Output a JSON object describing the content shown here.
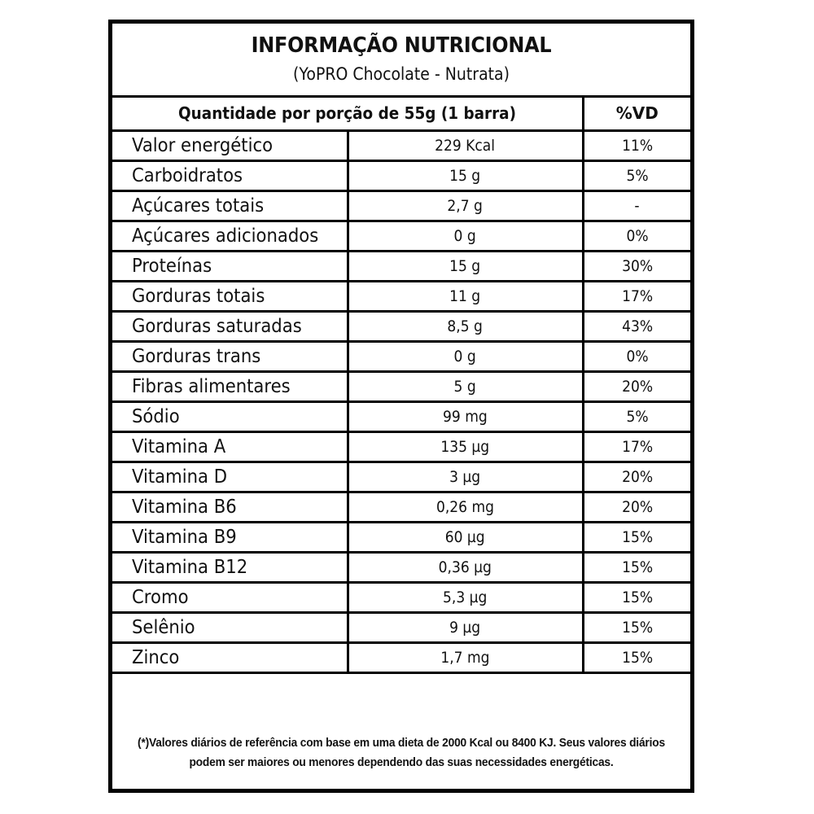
{
  "header": {
    "title": "INFORMAÇÃO NUTRICIONAL",
    "subtitle": "(YoPRO Chocolate - Nutrata)"
  },
  "columns": {
    "serving": "Quantidade por porção de 55g (1 barra)",
    "daily_value": "%VD"
  },
  "rows": [
    {
      "name": "Valor energético",
      "amount": "229 Kcal",
      "dv": "11%"
    },
    {
      "name": "Carboidratos",
      "amount": "15 g",
      "dv": "5%"
    },
    {
      "name": "Açúcares totais",
      "amount": "2,7 g",
      "dv": "-"
    },
    {
      "name": "Açúcares adicionados",
      "amount": "0 g",
      "dv": "0%"
    },
    {
      "name": "Proteínas",
      "amount": "15 g",
      "dv": "30%"
    },
    {
      "name": "Gorduras totais",
      "amount": "11 g",
      "dv": "17%"
    },
    {
      "name": "Gorduras saturadas",
      "amount": "8,5 g",
      "dv": "43%"
    },
    {
      "name": "Gorduras trans",
      "amount": "0 g",
      "dv": "0%"
    },
    {
      "name": "Fibras alimentares",
      "amount": "5 g",
      "dv": "20%"
    },
    {
      "name": "Sódio",
      "amount": "99 mg",
      "dv": "5%"
    },
    {
      "name": "Vitamina A",
      "amount": "135 µg",
      "dv": "17%"
    },
    {
      "name": "Vitamina D",
      "amount": "3 µg",
      "dv": "20%"
    },
    {
      "name": "Vitamina B6",
      "amount": "0,26 mg",
      "dv": "20%"
    },
    {
      "name": "Vitamina B9",
      "amount": "60 µg",
      "dv": "15%"
    },
    {
      "name": "Vitamina B12",
      "amount": "0,36 µg",
      "dv": "15%"
    },
    {
      "name": "Cromo",
      "amount": "5,3 µg",
      "dv": "15%"
    },
    {
      "name": "Selênio",
      "amount": "9 µg",
      "dv": "15%"
    },
    {
      "name": "Zinco",
      "amount": "1,7 mg",
      "dv": "15%"
    }
  ],
  "footnote": "(*)Valores diários de referência com base em uma dieta de 2000 Kcal ou 8400 KJ. Seus valores diários podem ser maiores ou menores dependendo das suas necessidades energéticas."
}
